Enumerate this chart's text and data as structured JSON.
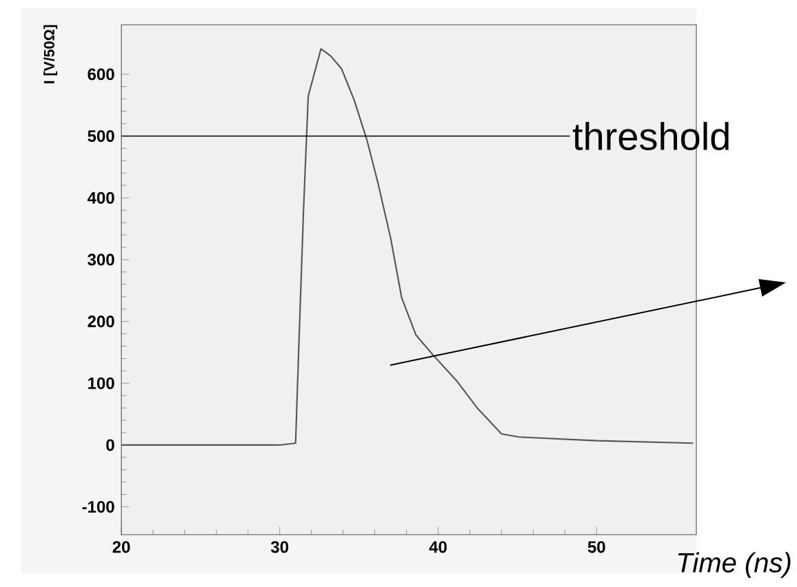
{
  "chart_data": {
    "type": "line",
    "xlabel": "Time (ns)",
    "ylabel": "I [V/50Ω]",
    "x": [
      20,
      25,
      30,
      31.0,
      31.2,
      31.5,
      31.8,
      32.6,
      33.2,
      33.9,
      34.7,
      35.5,
      36.2,
      37.0,
      37.7,
      38.6,
      39.7,
      41.2,
      42.5,
      44.0,
      45.1,
      50,
      56.1
    ],
    "series": [
      {
        "color": "#555555",
        "values": [
          0,
          0,
          0,
          3,
          157,
          380,
          565,
          641,
          630,
          609,
          558,
          494,
          424,
          335,
          238,
          178,
          145,
          103,
          59,
          18,
          13,
          7,
          3
        ]
      }
    ],
    "xlim": [
      20,
      56.3
    ],
    "ylim": [
      -145,
      680
    ],
    "xticks": [
      20,
      30,
      40,
      50
    ],
    "yticks": [
      -100,
      0,
      100,
      200,
      300,
      400,
      500,
      600
    ],
    "ref_lines": [
      {
        "axis": "y",
        "value": 500,
        "label": "threshold",
        "color": "#000000"
      }
    ],
    "grid": false,
    "marker": "none",
    "line_style": "solid"
  }
}
